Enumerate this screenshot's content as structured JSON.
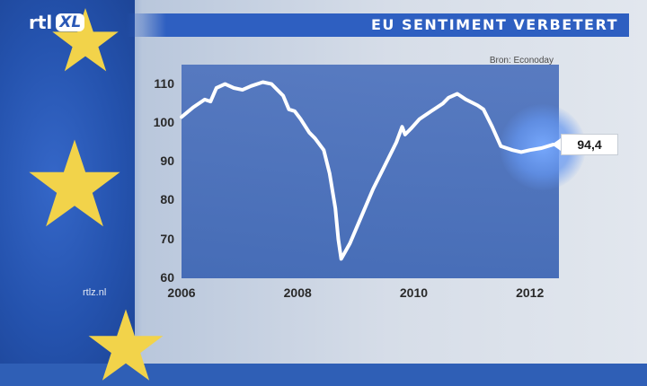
{
  "brand": {
    "logo_text": "rtl",
    "logo_badge": "XL",
    "watermark": "rtlz.nl"
  },
  "header": {
    "title": "EU SENTIMENT VERBETERT"
  },
  "chart_data": {
    "type": "line",
    "title": "EU SENTIMENT VERBETERT",
    "source": "Bron: Econoday",
    "ylim": [
      60,
      115
    ],
    "xlim": [
      2006,
      2012.5
    ],
    "y_ticks": [
      "110",
      "100",
      "90",
      "80",
      "70",
      "60"
    ],
    "y_tick_values": [
      110,
      100,
      90,
      80,
      70,
      60
    ],
    "x_ticks": [
      "2006",
      "2008",
      "2010",
      "2012"
    ],
    "x_tick_values": [
      2006,
      2008,
      2010,
      2012
    ],
    "grid": false,
    "last_value_label": "94,4",
    "series": [
      {
        "points": [
          [
            2006.0,
            101.5
          ],
          [
            2006.2,
            104.0
          ],
          [
            2006.4,
            106.0
          ],
          [
            2006.5,
            105.5
          ],
          [
            2006.6,
            109.0
          ],
          [
            2006.75,
            110.0
          ],
          [
            2006.9,
            109.0
          ],
          [
            2007.05,
            108.5
          ],
          [
            2007.2,
            109.5
          ],
          [
            2007.4,
            110.5
          ],
          [
            2007.55,
            110.0
          ],
          [
            2007.75,
            107.0
          ],
          [
            2007.85,
            103.5
          ],
          [
            2007.95,
            103.0
          ],
          [
            2008.05,
            101.0
          ],
          [
            2008.2,
            97.5
          ],
          [
            2008.3,
            96.0
          ],
          [
            2008.45,
            93.0
          ],
          [
            2008.55,
            87.0
          ],
          [
            2008.65,
            78.0
          ],
          [
            2008.7,
            70.0
          ],
          [
            2008.75,
            65.0
          ],
          [
            2008.9,
            69.0
          ],
          [
            2009.1,
            76.0
          ],
          [
            2009.3,
            83.0
          ],
          [
            2009.5,
            89.0
          ],
          [
            2009.7,
            95.0
          ],
          [
            2009.8,
            99.0
          ],
          [
            2009.85,
            97.0
          ],
          [
            2009.95,
            98.5
          ],
          [
            2010.1,
            101.0
          ],
          [
            2010.3,
            103.0
          ],
          [
            2010.5,
            105.0
          ],
          [
            2010.6,
            106.5
          ],
          [
            2010.75,
            107.5
          ],
          [
            2010.9,
            106.0
          ],
          [
            2011.1,
            104.5
          ],
          [
            2011.2,
            103.5
          ],
          [
            2011.35,
            99.0
          ],
          [
            2011.5,
            94.0
          ],
          [
            2011.7,
            93.0
          ],
          [
            2011.85,
            92.5
          ],
          [
            2012.0,
            93.0
          ],
          [
            2012.2,
            93.5
          ],
          [
            2012.4,
            94.4
          ]
        ]
      }
    ]
  }
}
